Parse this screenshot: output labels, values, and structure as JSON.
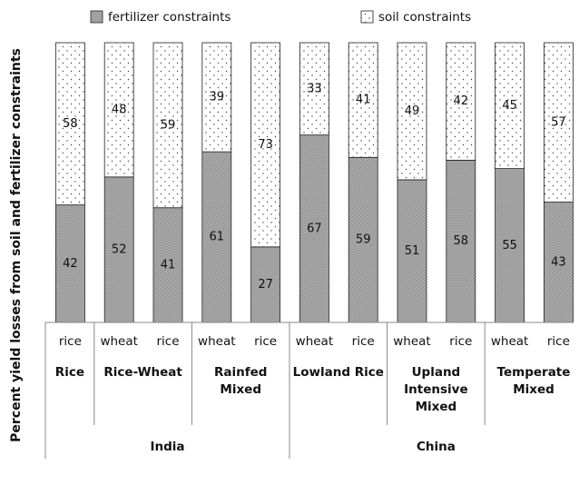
{
  "chart_data": {
    "type": "stacked_bar",
    "ylabel": "Percent yield losses from soil and fertilizer constraints",
    "categories": [
      "rice",
      "wheat",
      "rice",
      "wheat",
      "rice",
      "wheat",
      "rice",
      "wheat",
      "rice",
      "wheat",
      "rice"
    ],
    "systems": [
      {
        "lines": [
          "Rice"
        ],
        "bars": 1
      },
      {
        "lines": [
          "Rice-Wheat"
        ],
        "bars": 2
      },
      {
        "lines": [
          "Rainfed",
          "Mixed"
        ],
        "bars": 2
      },
      {
        "lines": [
          "Lowland Rice"
        ],
        "bars": 2
      },
      {
        "lines": [
          "Upland",
          "Intensive",
          "Mixed"
        ],
        "bars": 2
      },
      {
        "lines": [
          "Temperate",
          "Mixed"
        ],
        "bars": 2
      }
    ],
    "countries": [
      {
        "name": "India",
        "bars": 5
      },
      {
        "name": "China",
        "bars": 6
      }
    ],
    "series": [
      {
        "name": "fertilizer constraints",
        "color": "#b5b5b5",
        "values": [
          42,
          52,
          41,
          61,
          27,
          67,
          59,
          51,
          58,
          55,
          43
        ]
      },
      {
        "name": "soil constraints",
        "color": "#ffffff",
        "values": [
          58,
          48,
          59,
          39,
          73,
          33,
          41,
          49,
          42,
          45,
          57
        ]
      }
    ],
    "ylim": [
      0,
      100
    ]
  }
}
